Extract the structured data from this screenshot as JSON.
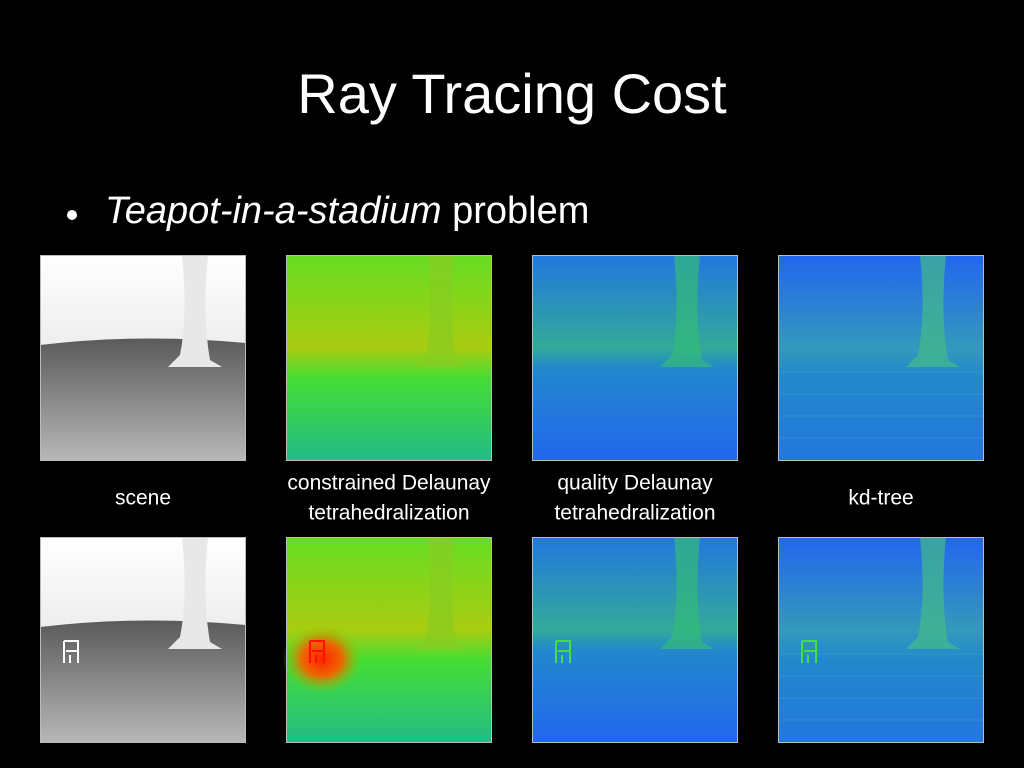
{
  "title": "Ray Tracing Cost",
  "bullet": {
    "emphasis": "Teapot-in-a-stadium",
    "text": "problem"
  },
  "captions": [
    [
      "scene"
    ],
    [
      "constrained Delaunay",
      "tetrahedralization"
    ],
    [
      "quality Delaunay",
      "tetrahedralization"
    ],
    [
      "kd-tree"
    ]
  ]
}
